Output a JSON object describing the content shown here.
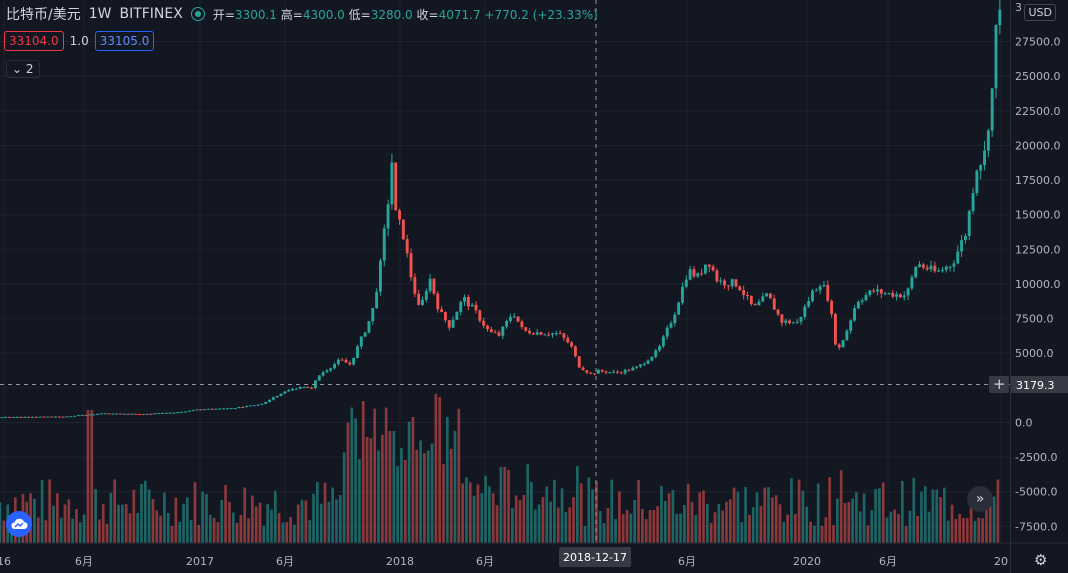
{
  "header": {
    "symbol": "比特币/美元",
    "interval": "1W",
    "exchange": "BITFINEX",
    "open_label": "开=",
    "open": "3300.1",
    "high_label": "高=",
    "high": "4300.0",
    "low_label": "低=",
    "low": "3280.0",
    "close_label": "收=",
    "close": "4071.7",
    "change": "+770.2 (+23.33%)"
  },
  "order": {
    "bid": "33104.0",
    "spread": "1.0",
    "ask": "33105.0"
  },
  "indicators_toggle": "2",
  "currency_button": "USD",
  "crosshair": {
    "price_label": "3179.3",
    "date_label": "2018-12-17"
  },
  "colors": {
    "up": "#26a69a",
    "down": "#ef5350",
    "background": "#131722",
    "grid": "#1e222d"
  },
  "icons": [
    "status-dot-icon",
    "chevron-down-icon",
    "plus-icon",
    "double-chevron-right-icon",
    "cloud-logo-icon",
    "settings-gear-icon"
  ],
  "chart_data": {
    "type": "candlestick",
    "interval": "1W",
    "y_axis": {
      "ticks": [
        "27500.0",
        "25000.0",
        "22500.0",
        "20000.0",
        "17500.0",
        "15000.0",
        "12500.0",
        "10000.0",
        "7500.0",
        "5000.0",
        "2500.0",
        "0.0",
        "-2500.0",
        "-5000.0",
        "-7500.0"
      ],
      "top_partial": "3",
      "ylim": [
        -8700,
        30500
      ]
    },
    "x_axis": {
      "ticks": [
        {
          "label": "16",
          "t": 2016.43
        },
        {
          "label": "6月",
          "t": 2016.42
        },
        {
          "label": "2017",
          "t": 2017.0
        },
        {
          "label": "6月",
          "t": 2017.42
        },
        {
          "label": "2018",
          "t": 2018.0
        },
        {
          "label": "6月",
          "t": 2018.42
        },
        {
          "label": "6月",
          "t": 2019.42
        },
        {
          "label": "2020",
          "t": 2020.0
        },
        {
          "label": "6月",
          "t": 2020.42
        },
        {
          "label": "20",
          "t": 2021.0
        }
      ],
      "range": [
        2015.98,
        2021.06
      ]
    },
    "price_path": [
      [
        2015.98,
        380
      ],
      [
        2016.3,
        420
      ],
      [
        2016.5,
        650
      ],
      [
        2016.7,
        600
      ],
      [
        2016.9,
        760
      ],
      [
        2017.0,
        960
      ],
      [
        2017.1,
        1000
      ],
      [
        2017.2,
        1100
      ],
      [
        2017.3,
        1300
      ],
      [
        2017.4,
        2100
      ],
      [
        2017.5,
        2600
      ],
      [
        2017.55,
        2400
      ],
      [
        2017.6,
        3500
      ],
      [
        2017.7,
        4500
      ],
      [
        2017.75,
        4200
      ],
      [
        2017.8,
        5800
      ],
      [
        2017.86,
        7800
      ],
      [
        2017.9,
        11000
      ],
      [
        2017.95,
        17000
      ],
      [
        2017.96,
        19000
      ],
      [
        2017.98,
        15000
      ],
      [
        2018.02,
        13500
      ],
      [
        2018.05,
        11000
      ],
      [
        2018.1,
        8000
      ],
      [
        2018.15,
        10500
      ],
      [
        2018.2,
        8000
      ],
      [
        2018.25,
        7000
      ],
      [
        2018.32,
        9000
      ],
      [
        2018.38,
        8000
      ],
      [
        2018.45,
        6500
      ],
      [
        2018.5,
        6300
      ],
      [
        2018.57,
        8000
      ],
      [
        2018.62,
        6600
      ],
      [
        2018.7,
        6500
      ],
      [
        2018.8,
        6400
      ],
      [
        2018.86,
        5600
      ],
      [
        2018.9,
        4100
      ],
      [
        2018.96,
        3500
      ],
      [
        2019.0,
        3700
      ],
      [
        2019.1,
        3600
      ],
      [
        2019.2,
        4000
      ],
      [
        2019.3,
        5200
      ],
      [
        2019.38,
        7800
      ],
      [
        2019.45,
        11000
      ],
      [
        2019.5,
        10500
      ],
      [
        2019.55,
        11800
      ],
      [
        2019.6,
        10200
      ],
      [
        2019.7,
        10000
      ],
      [
        2019.78,
        8200
      ],
      [
        2019.85,
        9200
      ],
      [
        2019.92,
        7300
      ],
      [
        2020.0,
        7200
      ],
      [
        2020.08,
        9500
      ],
      [
        2020.12,
        10200
      ],
      [
        2020.16,
        8800
      ],
      [
        2020.2,
        5000
      ],
      [
        2020.25,
        6700
      ],
      [
        2020.3,
        8800
      ],
      [
        2020.38,
        9500
      ],
      [
        2020.45,
        9300
      ],
      [
        2020.55,
        9200
      ],
      [
        2020.6,
        11500
      ],
      [
        2020.7,
        10800
      ],
      [
        2020.78,
        11500
      ],
      [
        2020.85,
        13800
      ],
      [
        2020.9,
        18500
      ],
      [
        2020.94,
        19200
      ],
      [
        2020.98,
        24000
      ],
      [
        2021.01,
        30500
      ]
    ],
    "volume": {
      "ylim": [
        0,
        1
      ],
      "spikes": [
        [
          2016.43,
          0.95
        ],
        [
          2017.95,
          0.8
        ],
        [
          2018.05,
          0.9
        ],
        [
          2018.88,
          0.55
        ],
        [
          2020.21,
          0.52
        ]
      ]
    }
  }
}
